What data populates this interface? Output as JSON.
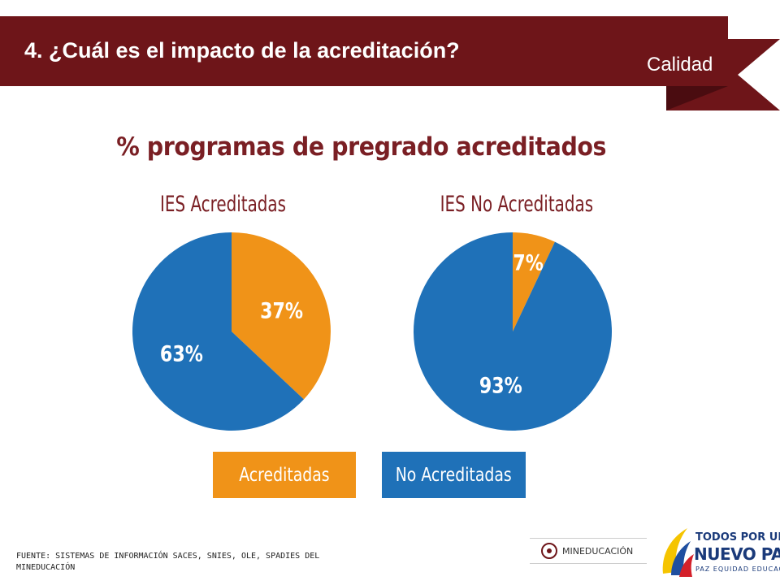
{
  "header": {
    "title": "4. ¿Cuál es el impacto de la acreditación?",
    "section_label": "Calidad",
    "bar_color": "#6e1519"
  },
  "chart_data": [
    {
      "type": "pie",
      "title": "% programas de pregrado acreditados",
      "subtitle": "IES Acreditadas",
      "categories": [
        "Acreditadas",
        "No Acreditadas"
      ],
      "values": [
        37,
        63
      ],
      "labels": [
        "37%",
        "63%"
      ],
      "colors": [
        "#f09318",
        "#1f71b8"
      ],
      "legend": "bottom"
    },
    {
      "type": "pie",
      "title": "% programas de pregrado acreditados",
      "subtitle": "IES No Acreditadas",
      "categories": [
        "Acreditadas",
        "No Acreditadas"
      ],
      "values": [
        7,
        93
      ],
      "labels": [
        "7%",
        "93%"
      ],
      "colors": [
        "#f09318",
        "#1f71b8"
      ],
      "legend": "bottom"
    }
  ],
  "legend": {
    "acreditadas": "Acreditadas",
    "no_acreditadas": "No Acreditadas"
  },
  "footer": {
    "source": "FUENTE: SISTEMAS DE INFORMACIÓN SACES, SNIES, OLE, SPADIES DEL MINEDUCACIÓN",
    "mineducacion": "MINEDUCACIÓN",
    "tpn_line1": "TODOS POR UN",
    "tpn_line2": "NUEVO PAÍS",
    "tpn_line3": "PAZ  EQUIDAD  EDUCACIÓN"
  }
}
